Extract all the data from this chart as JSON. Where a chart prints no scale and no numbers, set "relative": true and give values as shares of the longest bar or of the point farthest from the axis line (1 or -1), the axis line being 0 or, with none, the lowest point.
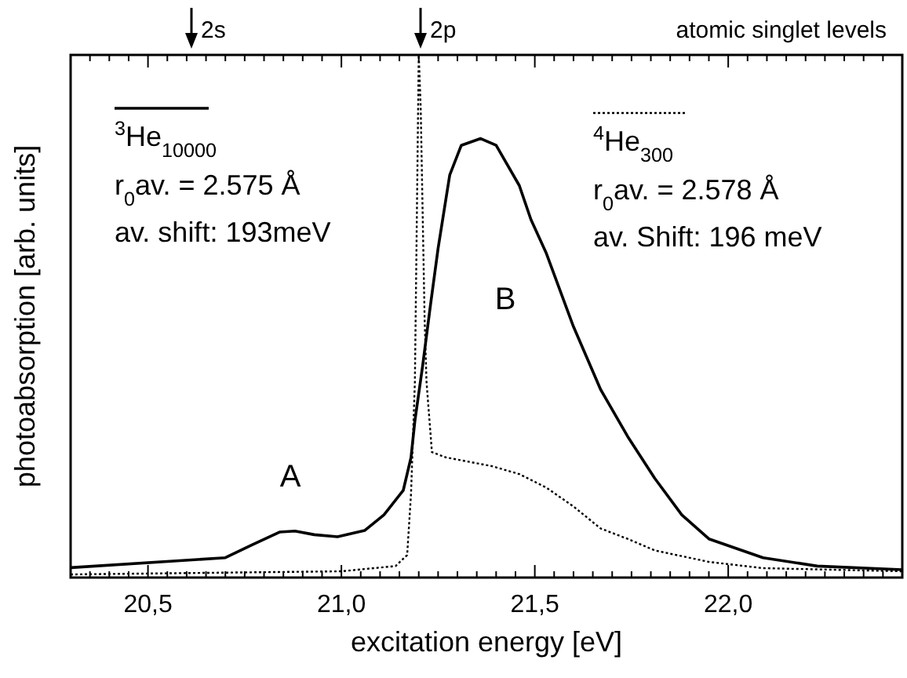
{
  "chart_data": {
    "type": "line",
    "relative": true,
    "xlabel": "excitation energy [eV]",
    "ylabel": "photoabsorption [arb. units]",
    "xlim": [
      20.3,
      22.45
    ],
    "xticks": [
      {
        "value": 20.3,
        "label": null
      },
      {
        "value": 20.35,
        "label": null
      },
      {
        "value": 20.4,
        "label": null
      },
      {
        "value": 20.45,
        "label": null
      },
      {
        "value": 20.5,
        "label": "20,5"
      },
      {
        "value": 20.55,
        "label": null
      },
      {
        "value": 20.6,
        "label": null
      },
      {
        "value": 20.65,
        "label": null
      },
      {
        "value": 20.7,
        "label": null
      },
      {
        "value": 20.75,
        "label": null
      },
      {
        "value": 20.8,
        "label": null
      },
      {
        "value": 20.85,
        "label": null
      },
      {
        "value": 20.9,
        "label": null
      },
      {
        "value": 20.95,
        "label": null
      },
      {
        "value": 21.0,
        "label": "21,0"
      },
      {
        "value": 21.05,
        "label": null
      },
      {
        "value": 21.1,
        "label": null
      },
      {
        "value": 21.15,
        "label": null
      },
      {
        "value": 21.2,
        "label": null
      },
      {
        "value": 21.25,
        "label": null
      },
      {
        "value": 21.3,
        "label": null
      },
      {
        "value": 21.35,
        "label": null
      },
      {
        "value": 21.4,
        "label": null
      },
      {
        "value": 21.45,
        "label": null
      },
      {
        "value": 21.5,
        "label": "21,5"
      },
      {
        "value": 21.55,
        "label": null
      },
      {
        "value": 21.6,
        "label": null
      },
      {
        "value": 21.65,
        "label": null
      },
      {
        "value": 21.7,
        "label": null
      },
      {
        "value": 21.75,
        "label": null
      },
      {
        "value": 21.8,
        "label": null
      },
      {
        "value": 21.85,
        "label": null
      },
      {
        "value": 21.9,
        "label": null
      },
      {
        "value": 21.95,
        "label": null
      },
      {
        "value": 22.0,
        "label": "22,0"
      },
      {
        "value": 22.05,
        "label": null
      },
      {
        "value": 22.1,
        "label": null
      },
      {
        "value": 22.15,
        "label": null
      },
      {
        "value": 22.2,
        "label": null
      },
      {
        "value": 22.25,
        "label": null
      },
      {
        "value": 22.3,
        "label": null
      },
      {
        "value": 22.35,
        "label": null
      },
      {
        "value": 22.4,
        "label": null
      }
    ],
    "legend": "top",
    "grid": false,
    "marker": "none",
    "series": [
      {
        "name": "$^{3}$He$_{10000}$",
        "color": "#000000",
        "line_style": "solid",
        "x": [
          20.3,
          20.7,
          20.77,
          20.84,
          20.88,
          20.93,
          20.99,
          21.06,
          21.11,
          21.16,
          21.18,
          21.19,
          21.21,
          21.23,
          21.25,
          21.28,
          21.31,
          21.36,
          21.4,
          21.46,
          21.49,
          21.53,
          21.6,
          21.67,
          21.74,
          21.81,
          21.88,
          21.95,
          22.09,
          22.23,
          22.45
        ],
        "values": [
          0.019,
          0.038,
          0.063,
          0.087,
          0.089,
          0.082,
          0.078,
          0.09,
          0.12,
          0.167,
          0.23,
          0.3,
          0.405,
          0.52,
          0.63,
          0.77,
          0.827,
          0.84,
          0.827,
          0.75,
          0.685,
          0.62,
          0.48,
          0.36,
          0.27,
          0.19,
          0.12,
          0.074,
          0.038,
          0.022,
          0.015
        ]
      },
      {
        "name": "$^{4}$He$_{300}$",
        "color": "#000000",
        "line_style": "dotted",
        "x": [
          20.3,
          21.0,
          21.14,
          21.17,
          21.18,
          21.19,
          21.195,
          21.2,
          21.205,
          21.215,
          21.22,
          21.234,
          21.27,
          21.39,
          21.46,
          21.53,
          21.6,
          21.67,
          21.74,
          21.81,
          21.95,
          22.09,
          22.45
        ],
        "values": [
          0.006,
          0.012,
          0.022,
          0.043,
          0.16,
          0.375,
          0.685,
          1,
          0.9,
          0.5,
          0.375,
          0.24,
          0.23,
          0.213,
          0.198,
          0.172,
          0.136,
          0.094,
          0.074,
          0.052,
          0.03,
          0.018,
          0.012
        ]
      }
    ],
    "annotations": [
      "A",
      "B",
      "2s",
      "2p",
      "atomic singlet levels",
      "r$_{0}$av. = 2.575 Å",
      "av. shift: 193meV",
      "r$_{0}$av. = 2.578 Å",
      "av. Shift: 196 meV"
    ]
  }
}
